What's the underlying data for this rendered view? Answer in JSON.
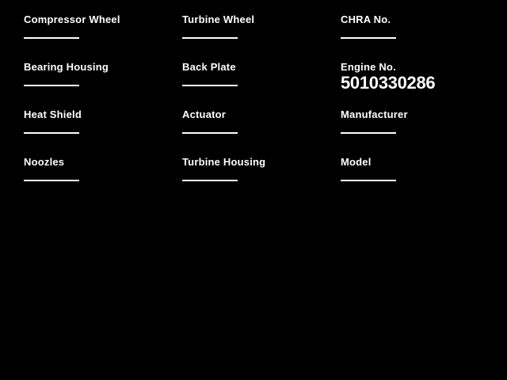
{
  "colors": {
    "background": "#000000",
    "text": "#ffffff",
    "underline": "#ffffff"
  },
  "form": {
    "fields": [
      {
        "label": "Compressor Wheel",
        "value": ""
      },
      {
        "label": "Turbine Wheel",
        "value": ""
      },
      {
        "label": "CHRA No.",
        "value": ""
      },
      {
        "label": "Bearing Housing",
        "value": ""
      },
      {
        "label": "Back Plate",
        "value": ""
      },
      {
        "label": "Engine No.",
        "value": "5010330286"
      },
      {
        "label": "Heat Shield",
        "value": ""
      },
      {
        "label": "Actuator",
        "value": ""
      },
      {
        "label": "Manufacturer",
        "value": ""
      },
      {
        "label": "Noozles",
        "value": ""
      },
      {
        "label": "Turbine Housing",
        "value": ""
      },
      {
        "label": "Model",
        "value": ""
      }
    ]
  }
}
